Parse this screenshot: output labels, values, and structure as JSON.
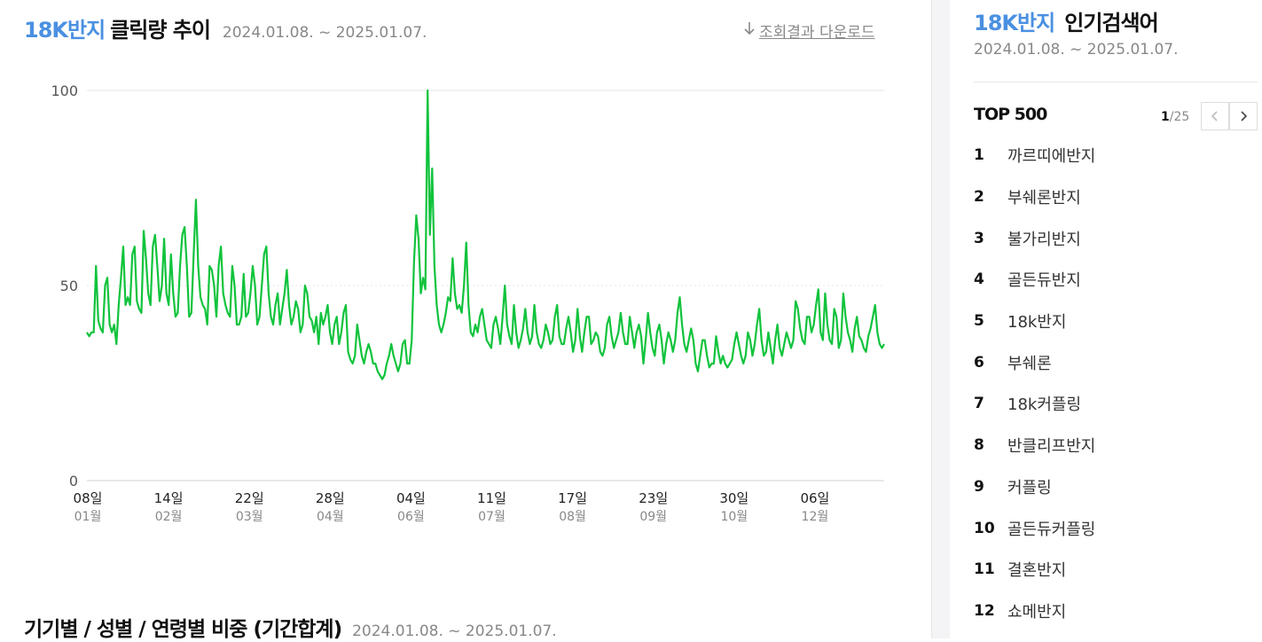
{
  "main": {
    "title_keyword": "18K반지",
    "title_rest": "클릭량 추이",
    "period": "2024.01.08. ~ 2025.01.07.",
    "download_label": "조회결과 다운로드",
    "section2_title": "기기별 / 성별 / 연령별 비중 (기간합계)",
    "section2_period": "2024.01.08. ~ 2025.01.07."
  },
  "colors": {
    "accent": "#4a90e2",
    "line": "#10c33c"
  },
  "icons": {
    "download": "download-arrow-icon",
    "prev": "chevron-left-icon",
    "next": "chevron-right-icon"
  },
  "chart_data": {
    "type": "line",
    "title": "18K반지 클릭량 추이",
    "xlabel": "",
    "ylabel": "",
    "ylim": [
      0,
      100
    ],
    "y_ticks": [
      0,
      50,
      100
    ],
    "grid": true,
    "x_tick_labels": [
      {
        "day": "08일",
        "month": "01월"
      },
      {
        "day": "14일",
        "month": "02월"
      },
      {
        "day": "22일",
        "month": "03월"
      },
      {
        "day": "28일",
        "month": "04월"
      },
      {
        "day": "04일",
        "month": "06월"
      },
      {
        "day": "11일",
        "month": "07월"
      },
      {
        "day": "17일",
        "month": "08월"
      },
      {
        "day": "23일",
        "month": "09월"
      },
      {
        "day": "30일",
        "month": "10월"
      },
      {
        "day": "06일",
        "month": "12월"
      }
    ],
    "series": [
      {
        "values": [
          38,
          37,
          38,
          38,
          55,
          41,
          39,
          38,
          50,
          52,
          40,
          38,
          40,
          35,
          45,
          52,
          60,
          45,
          47,
          45,
          58,
          60,
          46,
          44,
          43,
          64,
          57,
          48,
          45,
          60,
          63,
          55,
          46,
          50,
          62,
          48,
          45,
          58,
          48,
          42,
          43,
          55,
          63,
          65,
          55,
          42,
          43,
          58,
          72,
          55,
          47,
          45,
          44,
          40,
          55,
          54,
          50,
          42,
          55,
          60,
          48,
          45,
          43,
          42,
          55,
          50,
          40,
          40,
          42,
          53,
          42,
          43,
          48,
          55,
          50,
          40,
          42,
          50,
          58,
          60,
          48,
          42,
          40,
          45,
          48,
          40,
          44,
          48,
          54,
          45,
          40,
          42,
          46,
          44,
          38,
          40,
          50,
          48,
          42,
          41,
          38,
          42,
          35,
          43,
          40,
          42,
          45,
          38,
          35,
          40,
          42,
          35,
          38,
          43,
          45,
          33,
          31,
          30,
          32,
          40,
          36,
          32,
          30,
          33,
          35,
          33,
          30,
          30,
          28,
          27,
          26,
          27,
          30,
          32,
          35,
          32,
          30,
          28,
          30,
          35,
          36,
          30,
          30,
          36,
          56,
          68,
          62,
          48,
          52,
          49,
          100,
          63,
          80,
          55,
          45,
          40,
          38,
          40,
          43,
          47,
          46,
          57,
          48,
          44,
          45,
          43,
          50,
          61,
          45,
          38,
          37,
          40,
          38,
          42,
          44,
          40,
          36,
          35,
          34,
          40,
          42,
          39,
          35,
          42,
          50,
          40,
          37,
          35,
          45,
          38,
          34,
          36,
          39,
          44,
          38,
          35,
          37,
          45,
          38,
          35,
          34,
          36,
          40,
          38,
          35,
          36,
          42,
          45,
          37,
          35,
          35,
          39,
          42,
          38,
          33,
          36,
          44,
          37,
          33,
          38,
          42,
          42,
          35,
          36,
          38,
          37,
          33,
          32,
          34,
          40,
          42,
          37,
          34,
          36,
          38,
          43,
          38,
          35,
          35,
          42,
          38,
          34,
          38,
          40,
          37,
          30,
          36,
          43,
          38,
          34,
          32,
          38,
          40,
          36,
          30,
          35,
          38,
          36,
          33,
          36,
          43,
          47,
          40,
          35,
          33,
          36,
          39,
          36,
          30,
          28,
          32,
          36,
          36,
          32,
          29,
          30,
          30,
          37,
          33,
          30,
          32,
          30,
          29,
          30,
          31,
          35,
          38,
          35,
          32,
          30,
          32,
          38,
          36,
          32,
          35,
          40,
          44,
          36,
          32,
          33,
          38,
          34,
          30,
          36,
          40,
          34,
          32,
          35,
          38,
          36,
          34,
          36,
          46,
          44,
          39,
          36,
          35,
          42,
          42,
          38,
          40,
          45,
          49,
          38,
          36,
          48,
          40,
          36,
          35,
          44,
          42,
          34,
          36,
          48,
          42,
          38,
          36,
          33,
          39,
          42,
          37,
          36,
          34,
          33,
          37,
          39,
          42,
          45,
          38,
          35,
          34,
          35
        ]
      }
    ]
  },
  "sidebar": {
    "title_keyword": "18K반지",
    "title_rest": "인기검색어",
    "period": "2024.01.08. ~ 2025.01.07.",
    "top_label": "TOP 500",
    "page_current": "1",
    "page_total": "/25",
    "items": [
      {
        "rank": "1",
        "keyword": "까르띠에반지"
      },
      {
        "rank": "2",
        "keyword": "부쉐론반지"
      },
      {
        "rank": "3",
        "keyword": "불가리반지"
      },
      {
        "rank": "4",
        "keyword": "골든듀반지"
      },
      {
        "rank": "5",
        "keyword": "18k반지"
      },
      {
        "rank": "6",
        "keyword": "부쉐론"
      },
      {
        "rank": "7",
        "keyword": "18k커플링"
      },
      {
        "rank": "8",
        "keyword": "반클리프반지"
      },
      {
        "rank": "9",
        "keyword": "커플링"
      },
      {
        "rank": "10",
        "keyword": "골든듀커플링"
      },
      {
        "rank": "11",
        "keyword": "결혼반지"
      },
      {
        "rank": "12",
        "keyword": "쇼메반지"
      }
    ]
  }
}
